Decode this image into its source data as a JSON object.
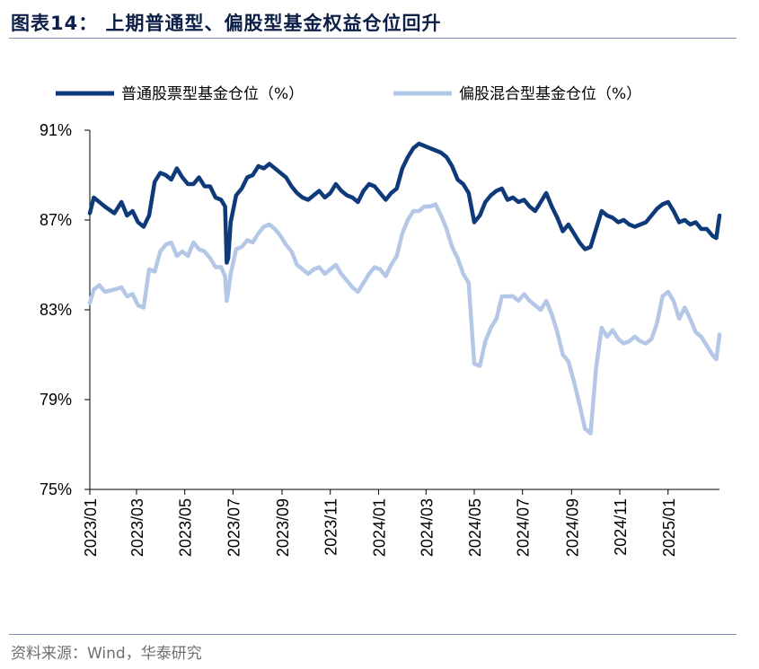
{
  "header": {
    "title": "图表14： 上期普通型、偏股型基金权益仓位回升"
  },
  "footer": {
    "source": "资料来源：Wind，华泰研究"
  },
  "chart_data": {
    "type": "line",
    "title": "图表14： 上期普通型、偏股型基金权益仓位回升",
    "xlabel": "",
    "ylabel": "",
    "x_ticks": [
      "2023/01",
      "2023/03",
      "2023/05",
      "2023/07",
      "2023/09",
      "2023/11",
      "2024/01",
      "2024/03",
      "2024/05",
      "2024/07",
      "2024/09",
      "2024/11",
      "2025/01"
    ],
    "y_ticks": [
      "91%",
      "87%",
      "83%",
      "79%",
      "75%"
    ],
    "ylim": [
      75,
      91
    ],
    "xlim": [
      "2023-01-01",
      "2025-03-07"
    ],
    "grid": false,
    "legend": "top",
    "series": [
      {
        "name": "普通股票型基金仓位（%）",
        "color": "#0e3a7a",
        "points": [
          [
            "2023-01-01",
            87.3
          ],
          [
            "2023-01-06",
            88.0
          ],
          [
            "2023-01-13",
            87.8
          ],
          [
            "2023-01-20",
            87.6
          ],
          [
            "2023-02-01",
            87.3
          ],
          [
            "2023-02-10",
            87.8
          ],
          [
            "2023-02-17",
            87.2
          ],
          [
            "2023-02-24",
            87.4
          ],
          [
            "2023-03-03",
            86.9
          ],
          [
            "2023-03-10",
            86.7
          ],
          [
            "2023-03-17",
            87.2
          ],
          [
            "2023-03-24",
            88.7
          ],
          [
            "2023-03-31",
            89.1
          ],
          [
            "2023-04-07",
            89.0
          ],
          [
            "2023-04-14",
            88.8
          ],
          [
            "2023-04-21",
            89.3
          ],
          [
            "2023-04-28",
            88.9
          ],
          [
            "2023-05-05",
            88.6
          ],
          [
            "2023-05-12",
            88.6
          ],
          [
            "2023-05-19",
            88.9
          ],
          [
            "2023-05-26",
            88.5
          ],
          [
            "2023-06-02",
            88.5
          ],
          [
            "2023-06-09",
            88.0
          ],
          [
            "2023-06-16",
            87.9
          ],
          [
            "2023-06-21",
            87.6
          ],
          [
            "2023-06-23",
            85.1
          ],
          [
            "2023-06-25",
            85.3
          ],
          [
            "2023-06-28",
            86.9
          ],
          [
            "2023-07-05",
            88.1
          ],
          [
            "2023-07-12",
            88.4
          ],
          [
            "2023-07-19",
            88.9
          ],
          [
            "2023-07-26",
            89.0
          ],
          [
            "2023-08-02",
            89.4
          ],
          [
            "2023-08-09",
            89.3
          ],
          [
            "2023-08-16",
            89.5
          ],
          [
            "2023-08-23",
            89.3
          ],
          [
            "2023-08-30",
            89.1
          ],
          [
            "2023-09-06",
            88.9
          ],
          [
            "2023-09-13",
            88.5
          ],
          [
            "2023-09-20",
            88.2
          ],
          [
            "2023-09-27",
            88.0
          ],
          [
            "2023-10-04",
            87.9
          ],
          [
            "2023-10-11",
            88.1
          ],
          [
            "2023-10-18",
            88.3
          ],
          [
            "2023-10-25",
            88.0
          ],
          [
            "2023-11-01",
            88.2
          ],
          [
            "2023-11-08",
            88.6
          ],
          [
            "2023-11-15",
            88.3
          ],
          [
            "2023-11-22",
            88.1
          ],
          [
            "2023-11-29",
            88.0
          ],
          [
            "2023-12-06",
            87.8
          ],
          [
            "2023-12-13",
            88.3
          ],
          [
            "2023-12-20",
            88.6
          ],
          [
            "2023-12-27",
            88.5
          ],
          [
            "2024-01-03",
            88.2
          ],
          [
            "2024-01-10",
            87.9
          ],
          [
            "2024-01-17",
            88.2
          ],
          [
            "2024-01-24",
            88.4
          ],
          [
            "2024-01-31",
            89.3
          ],
          [
            "2024-02-07",
            89.8
          ],
          [
            "2024-02-14",
            90.2
          ],
          [
            "2024-02-21",
            90.4
          ],
          [
            "2024-02-28",
            90.3
          ],
          [
            "2024-03-06",
            90.2
          ],
          [
            "2024-03-13",
            90.1
          ],
          [
            "2024-03-20",
            90.0
          ],
          [
            "2024-03-27",
            89.8
          ],
          [
            "2024-04-03",
            89.4
          ],
          [
            "2024-04-10",
            88.8
          ],
          [
            "2024-04-17",
            88.6
          ],
          [
            "2024-04-24",
            88.2
          ],
          [
            "2024-05-01",
            86.9
          ],
          [
            "2024-05-08",
            87.2
          ],
          [
            "2024-05-15",
            87.8
          ],
          [
            "2024-05-22",
            88.1
          ],
          [
            "2024-05-29",
            88.3
          ],
          [
            "2024-06-05",
            88.4
          ],
          [
            "2024-06-12",
            87.9
          ],
          [
            "2024-06-19",
            88.0
          ],
          [
            "2024-06-26",
            87.8
          ],
          [
            "2024-07-03",
            87.9
          ],
          [
            "2024-07-10",
            87.6
          ],
          [
            "2024-07-17",
            87.4
          ],
          [
            "2024-07-24",
            87.8
          ],
          [
            "2024-07-31",
            88.2
          ],
          [
            "2024-08-07",
            87.6
          ],
          [
            "2024-08-14",
            87.1
          ],
          [
            "2024-08-21",
            86.5
          ],
          [
            "2024-08-28",
            86.8
          ],
          [
            "2024-09-04",
            86.4
          ],
          [
            "2024-09-11",
            86.0
          ],
          [
            "2024-09-18",
            85.7
          ],
          [
            "2024-09-25",
            85.8
          ],
          [
            "2024-10-02",
            86.6
          ],
          [
            "2024-10-09",
            87.4
          ],
          [
            "2024-10-16",
            87.2
          ],
          [
            "2024-10-23",
            87.1
          ],
          [
            "2024-10-30",
            86.9
          ],
          [
            "2024-11-06",
            87.0
          ],
          [
            "2024-11-13",
            86.8
          ],
          [
            "2024-11-20",
            86.7
          ],
          [
            "2024-11-27",
            86.8
          ],
          [
            "2024-12-04",
            86.9
          ],
          [
            "2024-12-11",
            87.2
          ],
          [
            "2024-12-18",
            87.5
          ],
          [
            "2024-12-25",
            87.7
          ],
          [
            "2025-01-01",
            87.8
          ],
          [
            "2025-01-08",
            87.4
          ],
          [
            "2025-01-15",
            86.9
          ],
          [
            "2025-01-22",
            87.0
          ],
          [
            "2025-01-29",
            86.8
          ],
          [
            "2025-02-05",
            86.9
          ],
          [
            "2025-02-12",
            86.6
          ],
          [
            "2025-02-19",
            86.6
          ],
          [
            "2025-02-26",
            86.3
          ],
          [
            "2025-03-03",
            86.2
          ],
          [
            "2025-03-07",
            87.2
          ]
        ]
      },
      {
        "name": "偏股混合型基金仓位（%）",
        "color": "#b4c7e7",
        "points": [
          [
            "2023-01-01",
            83.3
          ],
          [
            "2023-01-06",
            83.9
          ],
          [
            "2023-01-13",
            84.1
          ],
          [
            "2023-01-20",
            83.8
          ],
          [
            "2023-02-01",
            83.9
          ],
          [
            "2023-02-10",
            84.0
          ],
          [
            "2023-02-17",
            83.6
          ],
          [
            "2023-02-24",
            83.7
          ],
          [
            "2023-03-03",
            83.2
          ],
          [
            "2023-03-10",
            83.1
          ],
          [
            "2023-03-17",
            84.8
          ],
          [
            "2023-03-24",
            84.7
          ],
          [
            "2023-03-31",
            85.6
          ],
          [
            "2023-04-07",
            85.9
          ],
          [
            "2023-04-14",
            86.0
          ],
          [
            "2023-04-21",
            85.4
          ],
          [
            "2023-04-28",
            85.6
          ],
          [
            "2023-05-05",
            85.4
          ],
          [
            "2023-05-12",
            86.0
          ],
          [
            "2023-05-19",
            85.7
          ],
          [
            "2023-05-26",
            85.6
          ],
          [
            "2023-06-02",
            85.3
          ],
          [
            "2023-06-09",
            84.9
          ],
          [
            "2023-06-16",
            84.9
          ],
          [
            "2023-06-21",
            84.5
          ],
          [
            "2023-06-23",
            83.4
          ],
          [
            "2023-06-25",
            83.8
          ],
          [
            "2023-06-28",
            84.6
          ],
          [
            "2023-07-05",
            85.7
          ],
          [
            "2023-07-12",
            85.8
          ],
          [
            "2023-07-19",
            86.1
          ],
          [
            "2023-07-26",
            86.0
          ],
          [
            "2023-08-02",
            86.4
          ],
          [
            "2023-08-09",
            86.7
          ],
          [
            "2023-08-16",
            86.8
          ],
          [
            "2023-08-23",
            86.6
          ],
          [
            "2023-08-30",
            86.3
          ],
          [
            "2023-09-06",
            85.9
          ],
          [
            "2023-09-13",
            85.6
          ],
          [
            "2023-09-20",
            85.0
          ],
          [
            "2023-09-27",
            84.8
          ],
          [
            "2023-10-04",
            84.6
          ],
          [
            "2023-10-11",
            84.8
          ],
          [
            "2023-10-18",
            84.9
          ],
          [
            "2023-10-25",
            84.6
          ],
          [
            "2023-11-01",
            84.8
          ],
          [
            "2023-11-08",
            85.0
          ],
          [
            "2023-11-15",
            84.6
          ],
          [
            "2023-11-22",
            84.3
          ],
          [
            "2023-11-29",
            84.0
          ],
          [
            "2023-12-06",
            83.8
          ],
          [
            "2023-12-13",
            84.2
          ],
          [
            "2023-12-20",
            84.6
          ],
          [
            "2023-12-27",
            84.9
          ],
          [
            "2024-01-03",
            84.8
          ],
          [
            "2024-01-10",
            84.5
          ],
          [
            "2024-01-17",
            85.0
          ],
          [
            "2024-01-24",
            85.4
          ],
          [
            "2024-01-31",
            86.4
          ],
          [
            "2024-02-07",
            87.0
          ],
          [
            "2024-02-14",
            87.4
          ],
          [
            "2024-02-21",
            87.4
          ],
          [
            "2024-02-28",
            87.6
          ],
          [
            "2024-03-06",
            87.6
          ],
          [
            "2024-03-13",
            87.7
          ],
          [
            "2024-03-20",
            87.2
          ],
          [
            "2024-03-27",
            86.6
          ],
          [
            "2024-04-03",
            85.8
          ],
          [
            "2024-04-10",
            85.3
          ],
          [
            "2024-04-17",
            84.6
          ],
          [
            "2024-04-24",
            84.2
          ],
          [
            "2024-05-01",
            80.6
          ],
          [
            "2024-05-08",
            80.5
          ],
          [
            "2024-05-15",
            81.6
          ],
          [
            "2024-05-22",
            82.2
          ],
          [
            "2024-05-29",
            82.6
          ],
          [
            "2024-06-05",
            83.6
          ],
          [
            "2024-06-12",
            83.6
          ],
          [
            "2024-06-19",
            83.6
          ],
          [
            "2024-06-26",
            83.4
          ],
          [
            "2024-07-03",
            83.7
          ],
          [
            "2024-07-10",
            83.4
          ],
          [
            "2024-07-17",
            83.2
          ],
          [
            "2024-07-24",
            83.0
          ],
          [
            "2024-07-31",
            83.4
          ],
          [
            "2024-08-07",
            82.8
          ],
          [
            "2024-08-14",
            82.0
          ],
          [
            "2024-08-21",
            81.0
          ],
          [
            "2024-08-28",
            80.7
          ],
          [
            "2024-09-04",
            79.8
          ],
          [
            "2024-09-11",
            78.8
          ],
          [
            "2024-09-18",
            77.7
          ],
          [
            "2024-09-25",
            77.5
          ],
          [
            "2024-10-02",
            80.4
          ],
          [
            "2024-10-09",
            82.2
          ],
          [
            "2024-10-16",
            81.8
          ],
          [
            "2024-10-23",
            82.1
          ],
          [
            "2024-10-30",
            81.7
          ],
          [
            "2024-11-06",
            81.5
          ],
          [
            "2024-11-13",
            81.6
          ],
          [
            "2024-11-20",
            81.8
          ],
          [
            "2024-11-27",
            81.6
          ],
          [
            "2024-12-04",
            81.5
          ],
          [
            "2024-12-11",
            81.7
          ],
          [
            "2024-12-18",
            82.4
          ],
          [
            "2024-12-25",
            83.6
          ],
          [
            "2025-01-01",
            83.8
          ],
          [
            "2025-01-08",
            83.4
          ],
          [
            "2025-01-15",
            82.6
          ],
          [
            "2025-01-22",
            83.1
          ],
          [
            "2025-01-29",
            82.6
          ],
          [
            "2025-02-05",
            82.0
          ],
          [
            "2025-02-12",
            81.8
          ],
          [
            "2025-02-19",
            81.4
          ],
          [
            "2025-02-26",
            81.0
          ],
          [
            "2025-03-03",
            80.8
          ],
          [
            "2025-03-07",
            81.9
          ]
        ]
      }
    ]
  }
}
